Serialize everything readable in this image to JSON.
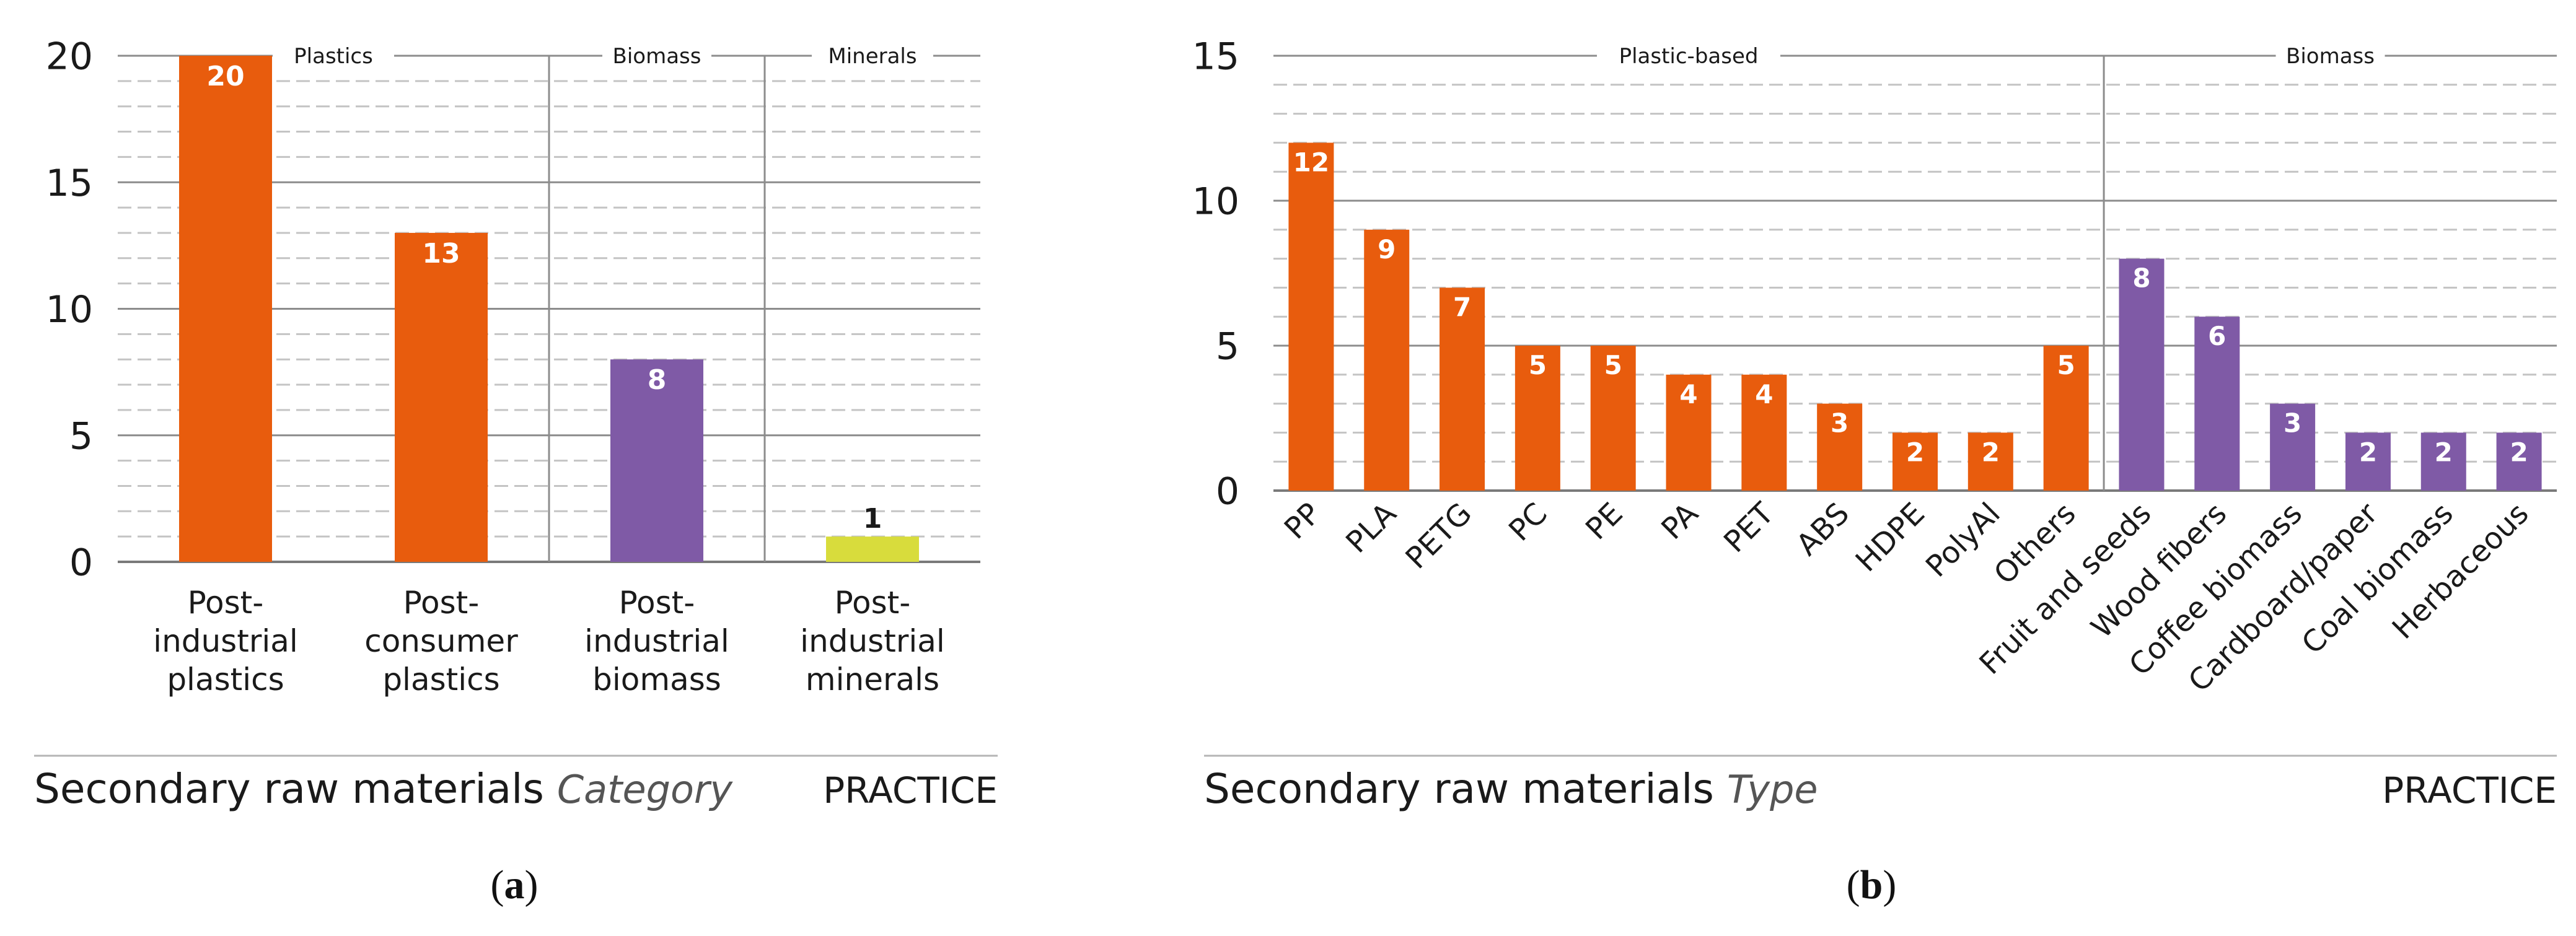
{
  "chart_data": [
    {
      "panel": "(a)",
      "type": "bar",
      "title": "Secondary raw materials",
      "title_suffix": "Category",
      "corner_label": "PRACTICE",
      "ylim": [
        0,
        20
      ],
      "yticks": [
        "0",
        "5",
        "10",
        "15",
        "20"
      ],
      "groups": [
        {
          "label": "Plastics",
          "categories": 2
        },
        {
          "label": "Biomass",
          "categories": 1
        },
        {
          "label": "Minerals",
          "categories": 1
        }
      ],
      "categories": [
        [
          "Post-",
          "industrial",
          "plastics"
        ],
        [
          "Post-",
          "consumer",
          "plastics"
        ],
        [
          "Post-",
          "industrial",
          "biomass"
        ],
        [
          "Post-",
          "industrial",
          "minerals"
        ]
      ],
      "values": [
        20,
        13,
        8,
        1
      ],
      "value_labels": [
        "20",
        "13",
        "8",
        "1"
      ],
      "colors": [
        "#e85c0d",
        "#e85c0d",
        "#7f5aa6",
        "#d8dc3c"
      ]
    },
    {
      "panel": "(b)",
      "type": "bar",
      "title": "Secondary raw materials",
      "title_suffix": "Type",
      "corner_label": "PRACTICE",
      "ylim": [
        0,
        15
      ],
      "yticks": [
        "0",
        "5",
        "10",
        "15"
      ],
      "groups": [
        {
          "label": "Plastic-based",
          "categories": 11
        },
        {
          "label": "Biomass",
          "categories": 6
        }
      ],
      "categories": [
        "PP",
        "PLA",
        "PETG",
        "PC",
        "PE",
        "PA",
        "PET",
        "ABS",
        "HDPE",
        "PolyAl",
        "Others",
        "Fruit and seeds",
        "Wood fibers",
        "Coffee biomass",
        "Cardboard/paper",
        "Coal biomass",
        "Herbaceous"
      ],
      "values": [
        12,
        9,
        7,
        5,
        5,
        4,
        4,
        3,
        2,
        2,
        5,
        8,
        6,
        3,
        2,
        2,
        2
      ],
      "value_labels": [
        "12",
        "9",
        "7",
        "5",
        "5",
        "4",
        "4",
        "3",
        "2",
        "2",
        "5",
        "8",
        "6",
        "3",
        "2",
        "2",
        "2"
      ],
      "colors": [
        "#e85c0d",
        "#e85c0d",
        "#e85c0d",
        "#e85c0d",
        "#e85c0d",
        "#e85c0d",
        "#e85c0d",
        "#e85c0d",
        "#e85c0d",
        "#e85c0d",
        "#e85c0d",
        "#7f5aa6",
        "#7f5aa6",
        "#7f5aa6",
        "#7f5aa6",
        "#7f5aa6",
        "#7f5aa6"
      ]
    }
  ]
}
